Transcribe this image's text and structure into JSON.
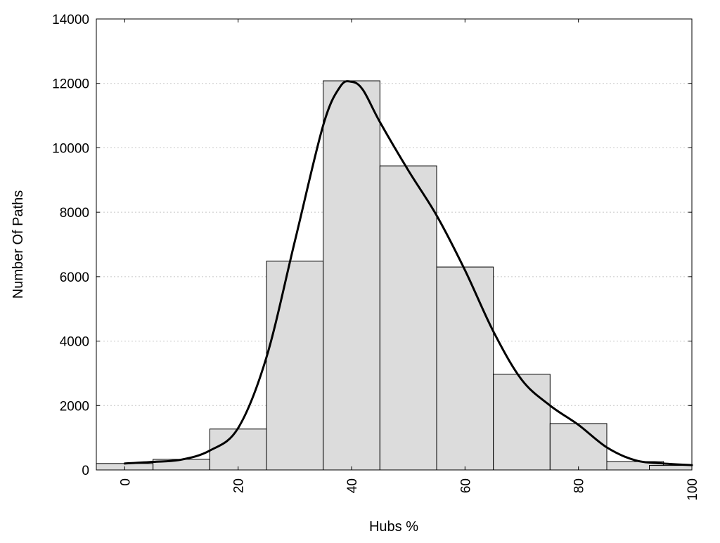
{
  "chart_data": {
    "type": "bar",
    "xlabel": "Hubs %",
    "ylabel": "Number Of Paths",
    "title": "",
    "xlim": [
      -5,
      100
    ],
    "ylim": [
      0,
      14000
    ],
    "x_ticks": [
      "0",
      "20",
      "40",
      "60",
      "80",
      "100"
    ],
    "x_tick_values": [
      0,
      20,
      40,
      60,
      80,
      100
    ],
    "y_ticks": [
      "0",
      "2000",
      "4000",
      "6000",
      "8000",
      "10000",
      "12000",
      "14000"
    ],
    "y_tick_values": [
      0,
      2000,
      4000,
      6000,
      8000,
      10000,
      12000,
      14000
    ],
    "bin_width": 10,
    "bins": [
      {
        "center": 0,
        "value": 200
      },
      {
        "center": 10,
        "value": 330
      },
      {
        "center": 20,
        "value": 1270
      },
      {
        "center": 30,
        "value": 6480
      },
      {
        "center": 40,
        "value": 12080
      },
      {
        "center": 50,
        "value": 9440
      },
      {
        "center": 60,
        "value": 6300
      },
      {
        "center": 70,
        "value": 2970
      },
      {
        "center": 80,
        "value": 1440
      },
      {
        "center": 90,
        "value": 260
      },
      {
        "center": 97.5,
        "value": 140
      }
    ],
    "curve": {
      "x": [
        0,
        5,
        10,
        15,
        20,
        25,
        30,
        35,
        38,
        40,
        42,
        45,
        50,
        55,
        60,
        65,
        70,
        75,
        80,
        85,
        90,
        95,
        100
      ],
      "y": [
        200,
        250,
        320,
        600,
        1300,
        3500,
        7100,
        10700,
        11900,
        12050,
        11800,
        10800,
        9300,
        7900,
        6200,
        4300,
        2800,
        2000,
        1400,
        700,
        300,
        200,
        150
      ]
    },
    "bar_color": "#dcdcdc",
    "bar_edge_color": "#000000",
    "curve_color": "#000000",
    "grid": true
  }
}
